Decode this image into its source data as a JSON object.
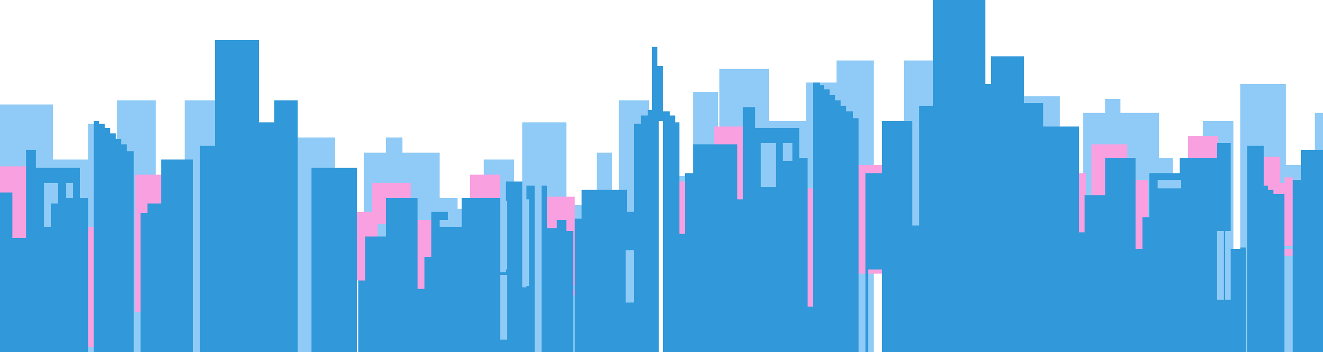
{
  "scene": {
    "subject": "city-skyline-silhouette",
    "palette": {
      "background": "#FFFFFF",
      "far_buildings": "#8FCBF6",
      "highlight": "#F8A0E0",
      "near_buildings": "#3199DA"
    }
  }
}
